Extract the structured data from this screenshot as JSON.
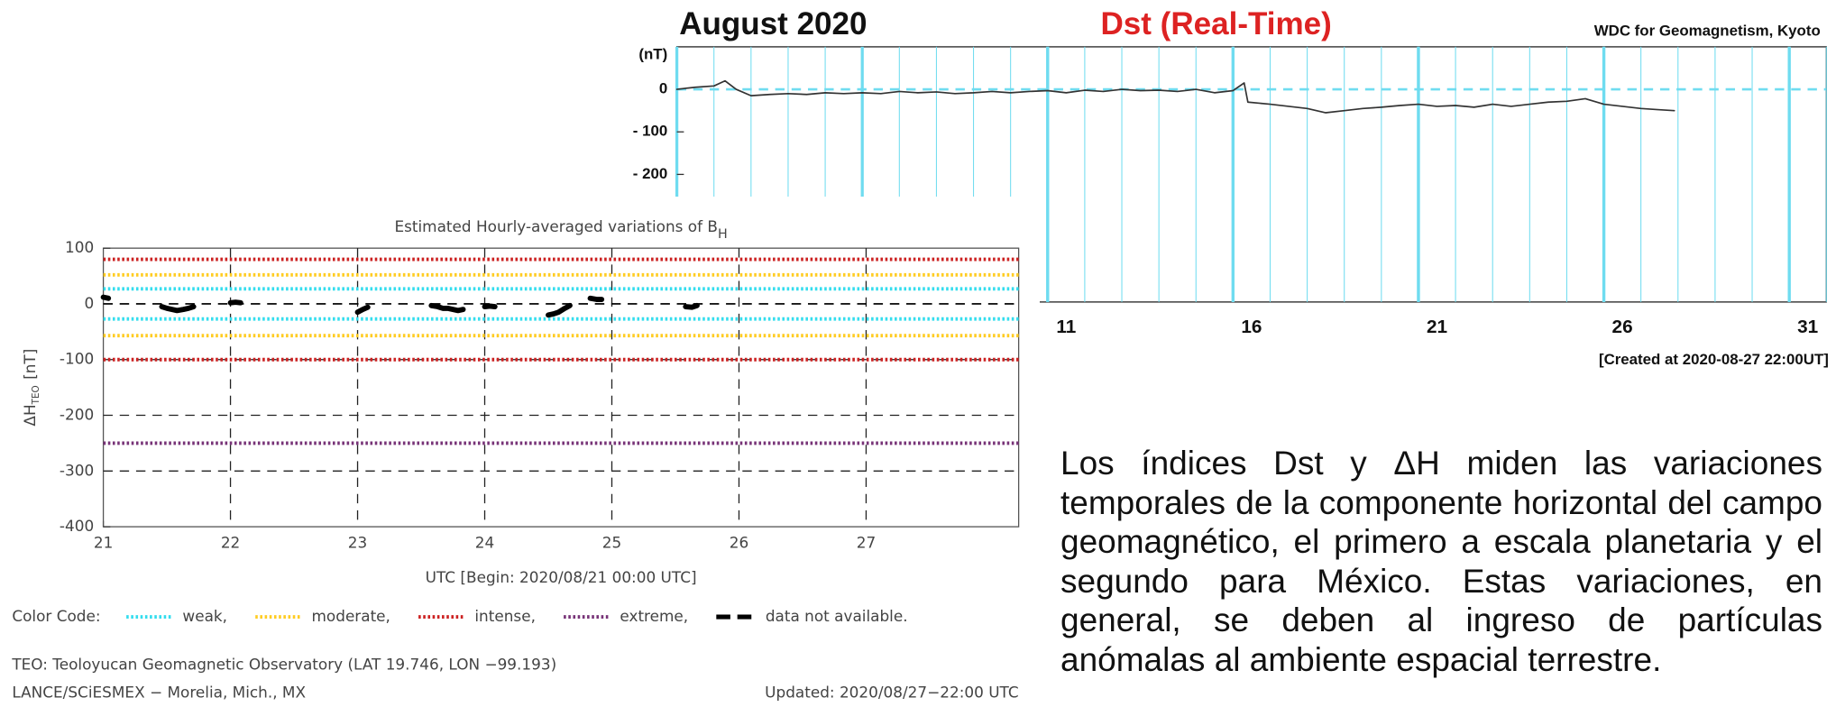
{
  "chart_data": [
    {
      "type": "line",
      "title": "August 2020",
      "subtitle": "Dst (Real-Time)",
      "source": "WDC for Geomagnetism, Kyoto",
      "y_label": "(nT)",
      "note": "[Created at 2020-08-27 22:00UT]",
      "xlim": [
        1,
        32
      ],
      "ylim": [
        -500,
        100
      ],
      "xticks": [
        11,
        16,
        21,
        26,
        31
      ],
      "yticks": [
        0,
        {
          "value": -100,
          "label": "- 100"
        },
        {
          "value": -200,
          "label": "- 200"
        }
      ],
      "grid": true,
      "minor_grid": true,
      "grid_color": "#6fdcf0",
      "grid_style": "solid",
      "color": "#333333",
      "reference_lines": [
        {
          "values": [
            0
          ],
          "color": "#6fdcf0",
          "style": "dashed"
        }
      ],
      "x": [
        1,
        1.5,
        2,
        2.3,
        2.6,
        3,
        3.5,
        4,
        4.5,
        5,
        5.5,
        6,
        6.5,
        7,
        7.5,
        8,
        8.5,
        9,
        9.5,
        10,
        10.5,
        11,
        11.5,
        12,
        12.5,
        13,
        13.5,
        14,
        14.5,
        15,
        15.5,
        16,
        16.3,
        16.4,
        17,
        17.5,
        18,
        18.5,
        19,
        19.5,
        20,
        20.5,
        21,
        21.5,
        22,
        22.5,
        23,
        23.5,
        24,
        24.5,
        25,
        25.5,
        26,
        26.5,
        27,
        27.5,
        27.9
      ],
      "values": [
        0,
        5,
        8,
        20,
        0,
        -15,
        -12,
        -10,
        -12,
        -8,
        -10,
        -8,
        -10,
        -5,
        -8,
        -6,
        -10,
        -8,
        -5,
        -8,
        -5,
        -3,
        -8,
        -2,
        -5,
        0,
        -3,
        -2,
        -5,
        0,
        -8,
        -3,
        15,
        -30,
        -35,
        -40,
        -45,
        -55,
        -50,
        -45,
        -42,
        -38,
        -35,
        -40,
        -38,
        -42,
        -35,
        -40,
        -35,
        -30,
        -28,
        -22,
        -35,
        -40,
        -45,
        -48,
        -50
      ]
    },
    {
      "type": "line",
      "title": "Estimated Hourly-averaged variations of B",
      "title_subscript": "H",
      "y_label": "ΔH",
      "y_label_subscript": "TEO",
      "y_label_unit": "[nT]",
      "x_label": "UTC [Begin: 2020/08/21 00:00 UTC]",
      "legend_title": "Color Code:",
      "xlim": [
        21,
        28.2
      ],
      "ylim": [
        -400,
        100
      ],
      "xticks": [
        21,
        22,
        23,
        24,
        25,
        26,
        27
      ],
      "yticks": [
        100,
        0,
        -100,
        -200,
        -300,
        -400
      ],
      "grid": true,
      "grid_color": "#222222",
      "grid_style": "dashed",
      "color": "#000000",
      "reference_lines": [
        {
          "name": "weak,",
          "values": [
            27,
            -27
          ],
          "color": "#33ddee",
          "style": "dotted"
        },
        {
          "name": "moderate,",
          "values": [
            52,
            -57
          ],
          "color": "#ffcc22",
          "style": "dotted"
        },
        {
          "name": "intense,",
          "values": [
            80,
            -100
          ],
          "color": "#cc2222",
          "style": "dotted"
        },
        {
          "name": "extreme,",
          "values": [
            -250
          ],
          "color": "#773377",
          "style": "dotted"
        },
        {
          "name": "data not available.",
          "values": [
            0
          ],
          "color": "#000000",
          "style": "dashed"
        }
      ],
      "x": [
        21.0,
        21.04,
        21.3,
        21.46,
        21.5,
        21.54,
        21.58,
        21.63,
        21.67,
        21.71,
        21.9,
        22.0,
        22.04,
        22.08,
        22.5,
        23.0,
        23.04,
        23.08,
        23.3,
        23.58,
        23.63,
        23.67,
        23.71,
        23.75,
        23.79,
        23.83,
        23.9,
        24.0,
        24.04,
        24.08,
        24.3,
        24.5,
        24.54,
        24.58,
        24.63,
        24.67,
        24.75,
        24.83,
        24.88,
        24.92,
        25.2,
        25.58,
        25.63,
        25.67
      ],
      "values": [
        12,
        10,
        null,
        -5,
        -8,
        -10,
        -12,
        -10,
        -8,
        -5,
        null,
        2,
        3,
        2,
        null,
        -15,
        -10,
        -6,
        null,
        -3,
        -5,
        -8,
        -8,
        -10,
        -12,
        -10,
        null,
        -5,
        -4,
        -5,
        null,
        -20,
        -18,
        -15,
        -8,
        -3,
        null,
        10,
        8,
        8,
        null,
        -5,
        -6,
        -3
      ],
      "footer": [
        "TEO: Teoloyucan Geomagnetic Observatory (LAT  19.746, LON −99.193)",
        "LANCE/SCiESMEX − Morelia, Mich., MX"
      ],
      "updated": "Updated: 2020/08/27−22:00 UTC"
    }
  ],
  "paragraph": "Los índices Dst y ΔH miden las variaciones temporales de la componente horizontal del campo geomagnético, el primero a escala planetaria y el segundo para México. Estas variaciones, en general, se deben al ingreso de partículas anómalas al ambiente espacial terrestre."
}
